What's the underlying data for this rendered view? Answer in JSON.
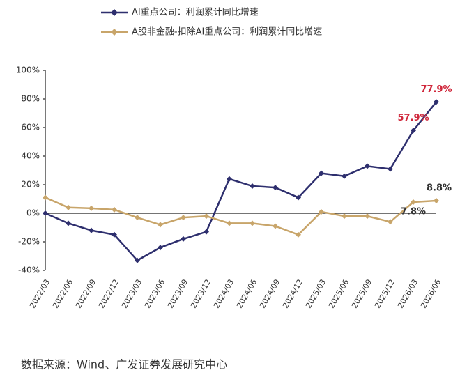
{
  "chart_data": {
    "type": "line",
    "categories": [
      "2022/03",
      "2022/06",
      "2022/09",
      "2022/12",
      "2023/03",
      "2023/06",
      "2023/09",
      "2023/12",
      "2024/03",
      "2024/06",
      "2024/09",
      "2024/12",
      "2025/03",
      "2025/06",
      "2025/09",
      "2025/12",
      "2026/03",
      "2026/06"
    ],
    "series": [
      {
        "name": "AI重点公司：利润累计同比增速",
        "color": "#2e2f6e",
        "values": [
          0,
          -7,
          -12,
          -15,
          -33,
          -24,
          -18,
          -13,
          24,
          19,
          18,
          11,
          28,
          26,
          33,
          31,
          57.9,
          77.9
        ],
        "value_labels": [
          null,
          null,
          null,
          null,
          null,
          null,
          null,
          null,
          null,
          null,
          null,
          null,
          null,
          null,
          null,
          null,
          "57.9%",
          "77.9%"
        ],
        "label_color": "#d0283c"
      },
      {
        "name": "A股非金融-扣除AI重点公司：利润累计同比增速",
        "color": "#c8a56a",
        "values": [
          11,
          4,
          3.5,
          2.5,
          -3,
          -8,
          -3,
          -2,
          -7,
          -7,
          -9,
          -15,
          1,
          -2,
          -2,
          -6,
          7.8,
          8.8
        ],
        "value_labels": [
          null,
          null,
          null,
          null,
          null,
          null,
          null,
          null,
          null,
          null,
          null,
          null,
          null,
          null,
          null,
          null,
          "7.8%",
          "8.8%"
        ],
        "label_color": "#333333"
      }
    ],
    "ylim": [
      -40,
      100
    ],
    "yticks": [
      {
        "value": -40,
        "label": "-40%"
      },
      {
        "value": -20,
        "label": "-20%"
      },
      {
        "value": 0,
        "label": "0%"
      },
      {
        "value": 20,
        "label": "20%"
      },
      {
        "value": 40,
        "label": "40%"
      },
      {
        "value": 60,
        "label": "60%"
      },
      {
        "value": 80,
        "label": "80%"
      },
      {
        "value": 100,
        "label": "100%"
      }
    ],
    "grid": false,
    "source": "数据来源：Wind、广发证券发展研究中心"
  }
}
